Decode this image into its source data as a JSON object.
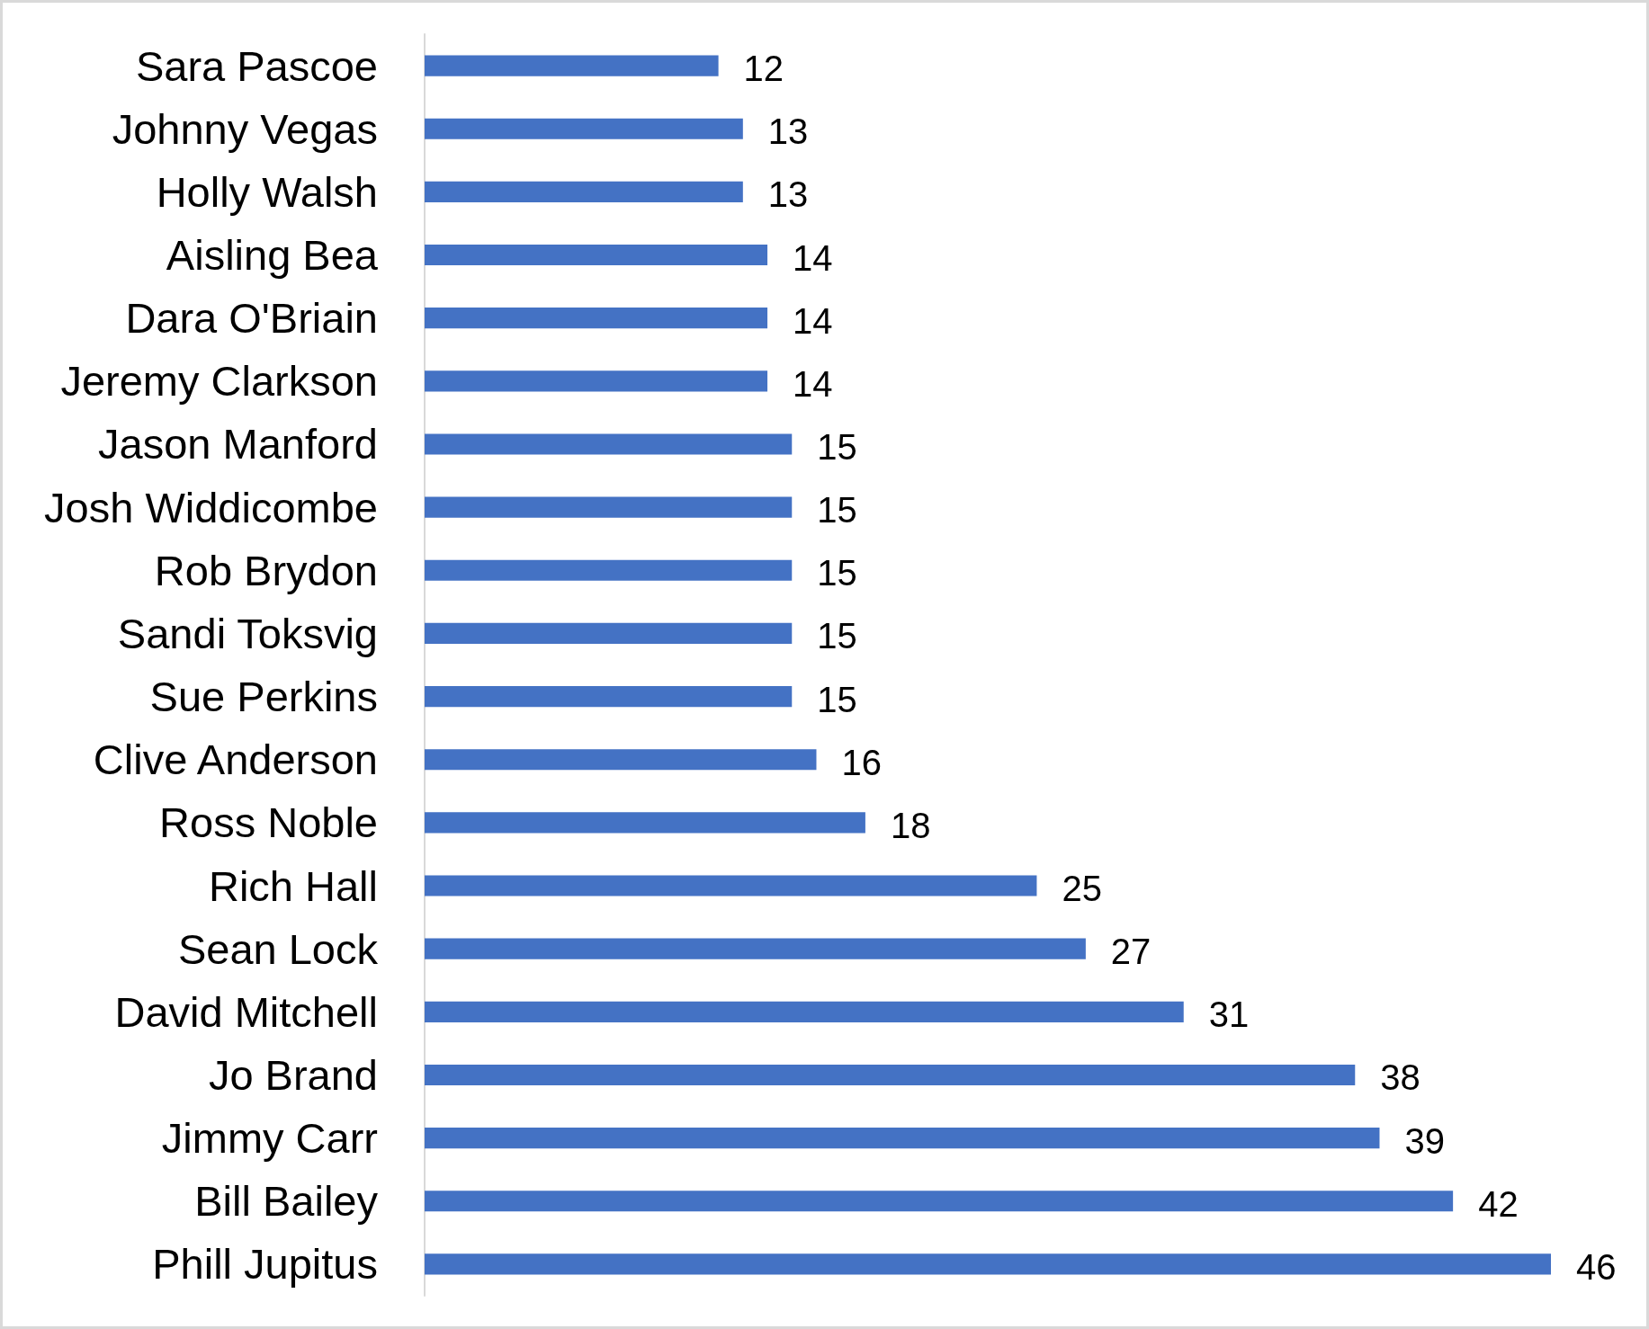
{
  "chart_data": {
    "type": "bar",
    "orientation": "horizontal",
    "categories": [
      "Sara Pascoe",
      "Johnny Vegas",
      "Holly Walsh",
      "Aisling Bea",
      "Dara O'Briain",
      "Jeremy Clarkson",
      "Jason Manford",
      "Josh Widdicombe",
      "Rob Brydon",
      "Sandi Toksvig",
      "Sue Perkins",
      "Clive Anderson",
      "Ross Noble",
      "Rich Hall",
      "Sean Lock",
      "David Mitchell",
      "Jo Brand",
      "Jimmy Carr",
      "Bill Bailey",
      "Phill Jupitus"
    ],
    "values": [
      12,
      13,
      13,
      14,
      14,
      14,
      15,
      15,
      15,
      15,
      15,
      16,
      18,
      25,
      27,
      31,
      38,
      39,
      42,
      46
    ],
    "color": "#4472c4",
    "data_labels": true
  }
}
